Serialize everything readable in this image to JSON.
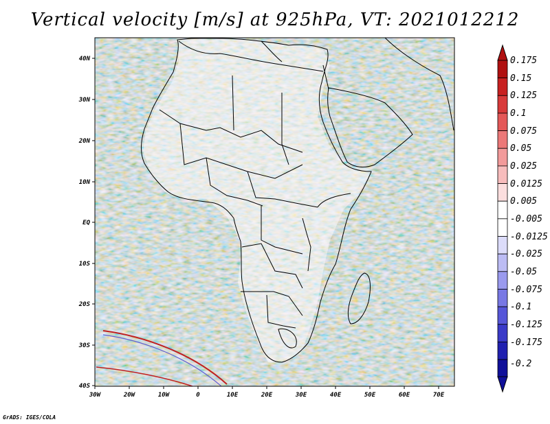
{
  "title": "Vertical velocity [m/s] at 925hPa, VT: 2021012212",
  "credit": "GrADS: IGES/COLA",
  "map": {
    "longitude_labels": [
      "30W",
      "20W",
      "10W",
      "0",
      "10E",
      "20E",
      "30E",
      "40E",
      "50E",
      "60E",
      "70E"
    ],
    "latitude_labels": [
      "40N",
      "30N",
      "20N",
      "10N",
      "EQ",
      "10S",
      "20S",
      "30S",
      "40S"
    ]
  },
  "colorbar": {
    "labels": [
      "0.175",
      "0.15",
      "0.125",
      "0.1",
      "0.075",
      "0.05",
      "0.025",
      "0.0125",
      "0.005",
      "-0.005",
      "-0.0125",
      "-0.025",
      "-0.05",
      "-0.075",
      "-0.1",
      "-0.125",
      "-0.175",
      "-0.2"
    ],
    "colors": [
      "#b01010",
      "#c82020",
      "#d83a3a",
      "#e45858",
      "#ec7878",
      "#f29a9a",
      "#f7bcbc",
      "#fbdede",
      "#ffffff",
      "#ffffff",
      "#dcdcfa",
      "#bcbcf4",
      "#9a9aee",
      "#7878e4",
      "#5656d8",
      "#3a3ac8",
      "#2020b0",
      "#10109a"
    ]
  }
}
